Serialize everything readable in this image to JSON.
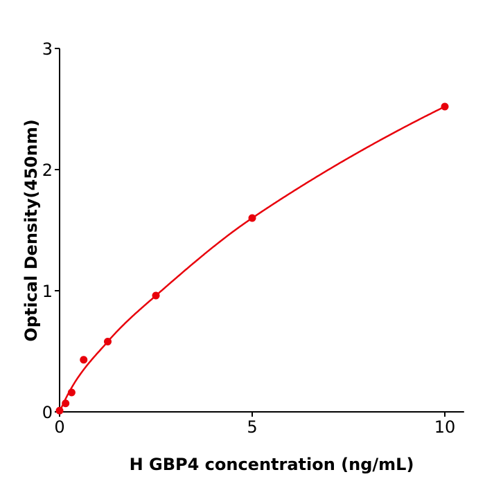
{
  "chart_data": {
    "type": "scatter",
    "xlabel": "H  GBP4 concentration (ng/mL)",
    "ylabel": "Optical Density(450nm)",
    "xlim": [
      0,
      10.5
    ],
    "ylim": [
      0,
      3
    ],
    "xticks": [
      "0",
      "5",
      "10"
    ],
    "yticks": [
      "0",
      "1",
      "2",
      "3"
    ],
    "grid": false,
    "color": "#e8000b",
    "series": [
      {
        "x": [
          0,
          0.156,
          0.3125,
          0.625,
          1.25,
          2.5,
          5,
          10
        ],
        "y": [
          0.01,
          0.07,
          0.16,
          0.43,
          0.58,
          0.96,
          1.6,
          2.52
        ],
        "fit_curve": true
      }
    ]
  }
}
